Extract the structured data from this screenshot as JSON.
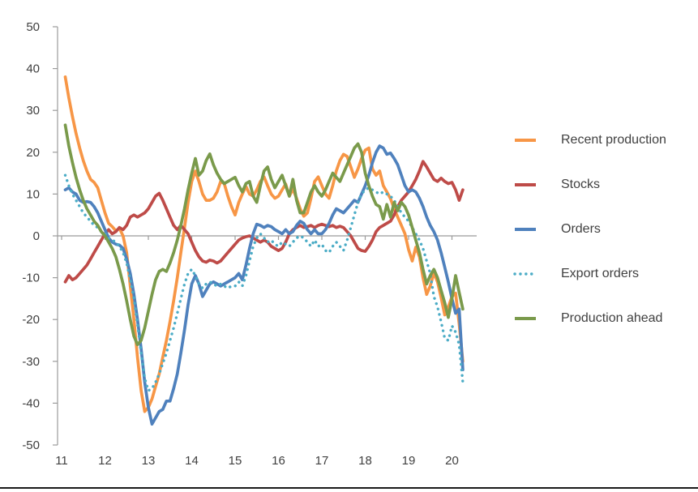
{
  "chart_data": {
    "type": "line",
    "title": "",
    "xlabel": "",
    "ylabel": "",
    "ylim": [
      -50,
      50
    ],
    "xlim": [
      10.9,
      20.55
    ],
    "y_ticks": [
      50,
      40,
      30,
      20,
      10,
      0,
      -10,
      -20,
      -30,
      -40,
      -50
    ],
    "x_ticks": [
      11,
      12,
      13,
      14,
      15,
      16,
      17,
      18,
      19,
      20
    ],
    "x_tick_labels": [
      "11",
      "12",
      "13",
      "14",
      "15",
      "16",
      "17",
      "18",
      "19",
      "20"
    ],
    "grid": false,
    "legend_position": "right",
    "axis_color": "#9B9B9B",
    "label_color": "#404040",
    "x_start": 11.08333,
    "x_step": 0.0833333,
    "series": [
      {
        "name": "Recent production",
        "color": "#F79646",
        "style": "solid",
        "values": [
          38,
          33,
          28.5,
          24.5,
          21,
          18,
          15.5,
          13.5,
          12.8,
          11.5,
          8.5,
          5.5,
          3,
          2.2,
          1.2,
          1.8,
          0,
          -4,
          -12,
          -20,
          -29,
          -37,
          -42,
          -41,
          -39,
          -36,
          -33,
          -29,
          -25,
          -20.5,
          -15.5,
          -10,
          -4,
          2,
          8,
          13,
          15.5,
          13,
          10,
          8.5,
          8.5,
          9,
          10.5,
          13,
          12.5,
          9.5,
          7,
          5,
          8,
          10,
          11.8,
          10,
          9.5,
          11,
          13,
          14.1,
          12,
          10,
          9,
          9.5,
          11,
          12.4,
          9.5,
          11.2,
          9,
          6.5,
          4.7,
          5.5,
          9,
          13,
          14.1,
          12,
          10,
          9,
          12,
          15.5,
          18,
          19.5,
          19,
          16.5,
          14,
          16,
          18.5,
          20.5,
          21,
          16,
          14.5,
          15.5,
          12,
          10.5,
          8.9,
          6.5,
          4.5,
          2.5,
          0.5,
          -3.3,
          -6,
          -2.7,
          -5,
          -10,
          -14,
          -12,
          -8.9,
          -11,
          -14.7,
          -18.9,
          -17,
          -14.5,
          -13.7,
          -21,
          -30
        ]
      },
      {
        "name": "Stocks",
        "color": "#BE4B48",
        "style": "solid",
        "values": [
          -11,
          -9.5,
          -10.5,
          -10,
          -9,
          -8,
          -7,
          -5.5,
          -4,
          -2.5,
          -1,
          0.5,
          1.5,
          0.5,
          1,
          2,
          1.5,
          2.5,
          4.5,
          5,
          4.5,
          5,
          5.5,
          6.5,
          8,
          9.5,
          10.2,
          8.5,
          6.5,
          4.5,
          2.5,
          1.5,
          2.5,
          1.5,
          0.5,
          -1.5,
          -3.5,
          -5,
          -6,
          -6.3,
          -5.8,
          -6,
          -6.5,
          -6,
          -5,
          -4,
          -3,
          -2,
          -1,
          -0.5,
          -0.2,
          0,
          -0.5,
          -1,
          -1.5,
          -1,
          -1.5,
          -2.5,
          -3,
          -3.5,
          -3,
          -1.5,
          0.5,
          1.5,
          2,
          2.5,
          2,
          2.2,
          2.5,
          2,
          2.5,
          2.8,
          2.5,
          2.2,
          2.5,
          2,
          2.3,
          2,
          1,
          0,
          -1.5,
          -3,
          -3.5,
          -3.7,
          -2.5,
          -1,
          1,
          2,
          2.5,
          3,
          3.5,
          5,
          7,
          8.5,
          9.5,
          10.5,
          12,
          13.5,
          15.5,
          17.8,
          16.5,
          15,
          13.5,
          13,
          13.8,
          13,
          12.5,
          12.8,
          11,
          8.5,
          11
        ]
      },
      {
        "name": "Orders",
        "color": "#4F81BD",
        "style": "solid",
        "values": [
          11,
          11.5,
          10.5,
          10,
          8.5,
          8,
          8.2,
          8,
          7,
          5.5,
          3.5,
          1.5,
          -0.5,
          -1.5,
          -2,
          -2.2,
          -3,
          -5.5,
          -9,
          -14,
          -20,
          -27,
          -35,
          -41,
          -45,
          -43.5,
          -42,
          -41.5,
          -39.5,
          -39.5,
          -36.5,
          -33,
          -28,
          -22.5,
          -16.5,
          -11.5,
          -9.5,
          -11.5,
          -14.5,
          -13,
          -11.5,
          -11,
          -11.5,
          -12,
          -11.5,
          -11,
          -10.5,
          -10,
          -9,
          -10.5,
          -7,
          -3,
          0.5,
          2.8,
          2.5,
          2,
          2.5,
          2.2,
          1.5,
          1,
          0.5,
          1.5,
          0.5,
          1,
          2.5,
          3.5,
          3,
          1.5,
          0.5,
          1.5,
          0.5,
          0.5,
          1.5,
          3,
          5,
          6.5,
          6,
          5.5,
          6.5,
          7.5,
          8.5,
          8,
          10,
          12,
          14.5,
          17.5,
          20,
          21.5,
          21,
          19.5,
          19.8,
          18.5,
          17,
          14.5,
          12,
          10.5,
          11,
          10.5,
          9,
          7,
          4.5,
          2.5,
          1,
          -1,
          -4,
          -7.5,
          -11,
          -15,
          -18.5,
          -17.5,
          -32
        ]
      },
      {
        "name": "Export orders",
        "color": "#4BACC6",
        "style": "dotted",
        "values": [
          14.5,
          12,
          10,
          8.5,
          7,
          5.5,
          4.5,
          3.5,
          2.5,
          2,
          1,
          0.5,
          -0.5,
          -1,
          -1.5,
          -2.5,
          -4,
          -6.5,
          -10.5,
          -15,
          -21,
          -28,
          -34,
          -37,
          -36.5,
          -35,
          -33,
          -30.5,
          -28,
          -25,
          -22,
          -18.5,
          -15,
          -11.5,
          -9,
          -8,
          -9.5,
          -11.5,
          -12.5,
          -11.5,
          -11,
          -11.5,
          -12,
          -11.5,
          -12,
          -12.5,
          -12,
          -12,
          -11,
          -12,
          -9.5,
          -6,
          -2.5,
          -0.5,
          0.5,
          -0.5,
          -1.5,
          -1,
          -2,
          -2.5,
          -1.5,
          -2,
          -2.5,
          -1.5,
          -0.5,
          0,
          -0.5,
          -1.5,
          -2.5,
          -1,
          -2.5,
          -2,
          -3.5,
          -4,
          -2.5,
          -1.5,
          -2.5,
          -3.5,
          -1,
          2,
          5,
          8,
          10,
          11,
          11.5,
          11,
          10.5,
          10,
          10.5,
          10,
          9.5,
          8.5,
          7,
          5.5,
          4.5,
          3.5,
          2,
          0.5,
          -1,
          -3,
          -6,
          -9,
          -14.5,
          -17,
          -20.5,
          -24.5,
          -25,
          -21.5,
          -23,
          -26,
          -35
        ]
      },
      {
        "name": "Production ahead",
        "color": "#7A9A4B",
        "style": "solid",
        "values": [
          26.5,
          21.5,
          17.5,
          14,
          11,
          8.5,
          6.5,
          5,
          3.5,
          2.5,
          1,
          0,
          -1.5,
          -3,
          -5,
          -8,
          -11.5,
          -15.5,
          -20,
          -24,
          -26,
          -25,
          -22,
          -18,
          -14,
          -10.5,
          -8.5,
          -8,
          -8.5,
          -6.5,
          -4,
          -1,
          2.5,
          6.5,
          11,
          15,
          18.5,
          14.5,
          15.5,
          18,
          19.6,
          17,
          15,
          13.5,
          12.5,
          13,
          13.5,
          14,
          12,
          10.5,
          12.5,
          13,
          9.5,
          8,
          12,
          15.5,
          16.5,
          13.5,
          11.5,
          13,
          14.5,
          12,
          9.5,
          13.5,
          8.5,
          5.5,
          5.5,
          8,
          10.5,
          12,
          10.5,
          9.5,
          11,
          13,
          15,
          14,
          13,
          15,
          17,
          19,
          21,
          22,
          20,
          15,
          12,
          9.5,
          7.5,
          7,
          4,
          7.5,
          4.5,
          8,
          6,
          8,
          7,
          5,
          2,
          -1,
          -4,
          -8,
          -11.5,
          -9.5,
          -8,
          -10,
          -13,
          -16,
          -19.5,
          -15,
          -9.5,
          -13.5,
          -17.5
        ]
      }
    ]
  },
  "legend": {
    "items": [
      "Recent production",
      "Stocks",
      "Orders",
      "Export orders",
      "Production ahead"
    ]
  }
}
